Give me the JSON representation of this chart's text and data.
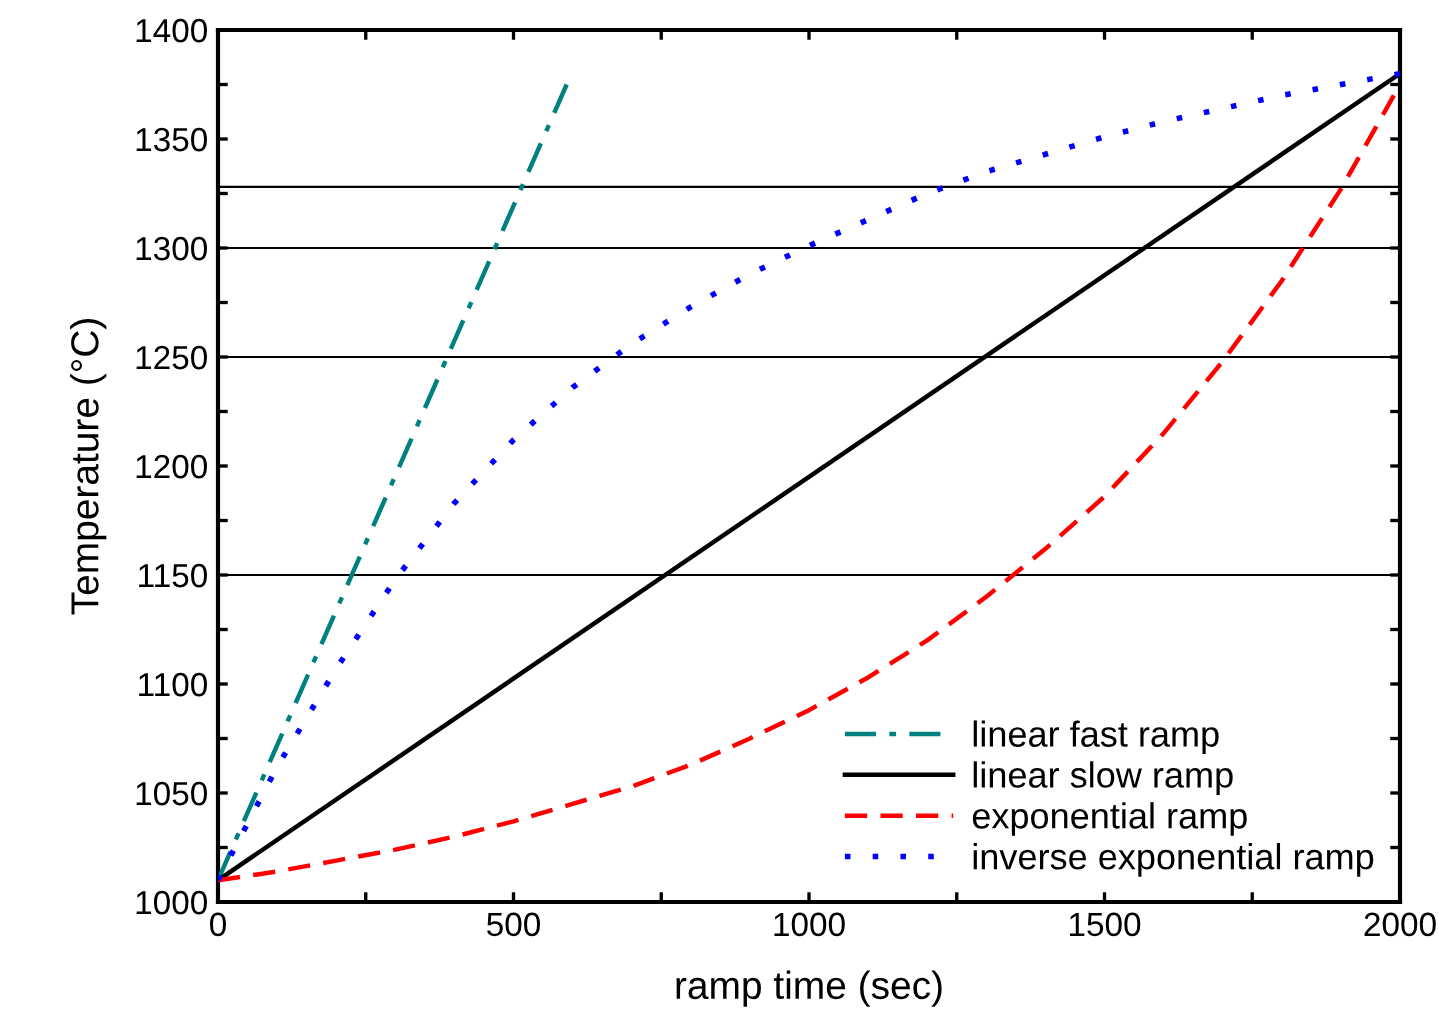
{
  "chart_data": {
    "type": "line",
    "xlabel": "ramp time (sec)",
    "ylabel": "Temperature (°C)",
    "xlim": [
      0,
      2000
    ],
    "ylim": [
      1000,
      1400
    ],
    "xticks": [
      0,
      {
        "value": 250,
        "label": null
      },
      500,
      {
        "value": 750,
        "label": null
      },
      1000,
      {
        "value": 1250,
        "label": null
      },
      1500,
      {
        "value": 1750,
        "label": null
      },
      2000
    ],
    "yticks": [
      1000,
      {
        "value": 1025,
        "label": null
      },
      1050,
      {
        "value": 1075,
        "label": null
      },
      1100,
      {
        "value": 1125,
        "label": null
      },
      1150,
      {
        "value": 1175,
        "label": null
      },
      1200,
      {
        "value": 1225,
        "label": null
      },
      1250,
      {
        "value": 1275,
        "label": null
      },
      1300,
      {
        "value": 1325,
        "label": null
      },
      1350,
      {
        "value": 1375,
        "label": null
      },
      1400
    ],
    "grid": false,
    "legend": "bottom right",
    "ref_lines": [
      {
        "axis": "y",
        "value": 1150,
        "color": "#000000"
      },
      {
        "axis": "y",
        "value": 1250,
        "color": "#000000"
      },
      {
        "axis": "y",
        "value": 1300,
        "color": "#000000"
      },
      {
        "axis": "y",
        "value": 1328,
        "color": "#000000"
      }
    ],
    "series": [
      {
        "name": "linear fast ramp",
        "color": "#008080",
        "line_style": "dashdot",
        "x": [
          0,
          590
        ],
        "values": [
          1010,
          1375
        ]
      },
      {
        "name": "linear slow ramp",
        "color": "#000000",
        "line_style": "solid",
        "x": [
          0,
          2000
        ],
        "values": [
          1010,
          1380
        ]
      },
      {
        "name": "exponential ramp",
        "color": "#ff0000",
        "line_style": "dashed",
        "x": [
          0,
          100,
          200,
          300,
          400,
          500,
          600,
          700,
          800,
          900,
          1000,
          1100,
          1200,
          1300,
          1400,
          1500,
          1600,
          1700,
          1800,
          1900,
          2000
        ],
        "values": [
          1010,
          1014,
          1019,
          1024,
          1030,
          1037,
          1045,
          1053,
          1063,
          1075,
          1088,
          1103,
          1120,
          1140,
          1162,
          1186,
          1215,
          1248,
          1285,
          1327,
          1375
        ]
      },
      {
        "name": "inverse exponential ramp",
        "color": "#0000ff",
        "line_style": "dotted",
        "x": [
          0,
          100,
          200,
          300,
          400,
          500,
          600,
          700,
          800,
          900,
          1000,
          1100,
          1200,
          1300,
          1400,
          1500,
          1600,
          1700,
          1800,
          1900,
          2000
        ],
        "values": [
          1010,
          1062,
          1107,
          1148,
          1183,
          1212,
          1236,
          1256,
          1273,
          1288,
          1301,
          1313,
          1325,
          1335,
          1343,
          1351,
          1358,
          1364,
          1370,
          1375,
          1380
        ]
      }
    ]
  }
}
